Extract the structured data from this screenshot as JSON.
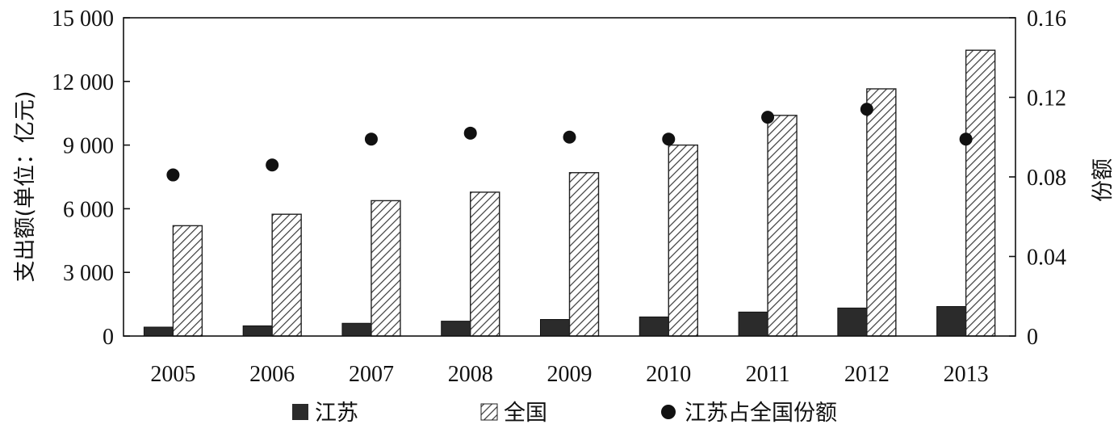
{
  "chart_data": {
    "type": "bar",
    "categories": [
      "2005",
      "2006",
      "2007",
      "2008",
      "2009",
      "2010",
      "2011",
      "2012",
      "2013"
    ],
    "series": [
      {
        "name": "江苏",
        "axis": "left",
        "style": "solid-dark",
        "values": [
          420,
          480,
          600,
          700,
          780,
          900,
          1130,
          1320,
          1390
        ]
      },
      {
        "name": "全国",
        "axis": "left",
        "style": "hatched",
        "values": [
          5200,
          5740,
          6380,
          6780,
          7700,
          9000,
          10400,
          11650,
          13470
        ]
      },
      {
        "name": "江苏占全国份额",
        "axis": "right",
        "style": "dot",
        "values": [
          0.081,
          0.086,
          0.099,
          0.102,
          0.1,
          0.099,
          0.11,
          0.114,
          0.099
        ]
      }
    ],
    "ylabel": "支出额(单位：亿元)",
    "ylabel_right": "份额",
    "ylim": [
      0,
      15000
    ],
    "ylim_right": [
      0,
      0.16
    ],
    "yticks": [
      "0",
      "3 000",
      "6 000",
      "9 000",
      "12 000",
      "15 000"
    ],
    "yticks_right": [
      "0",
      "0.04",
      "0.08",
      "0.12",
      "0.16"
    ],
    "grid": false,
    "legend_position": "bottom"
  },
  "colors": {
    "jiangsu_bar": "#2b2b2b",
    "national_hatch_line": "#3a3a3a",
    "national_bar_bg": "#ffffff",
    "share_dot": "#111111",
    "axis": "#111111"
  }
}
